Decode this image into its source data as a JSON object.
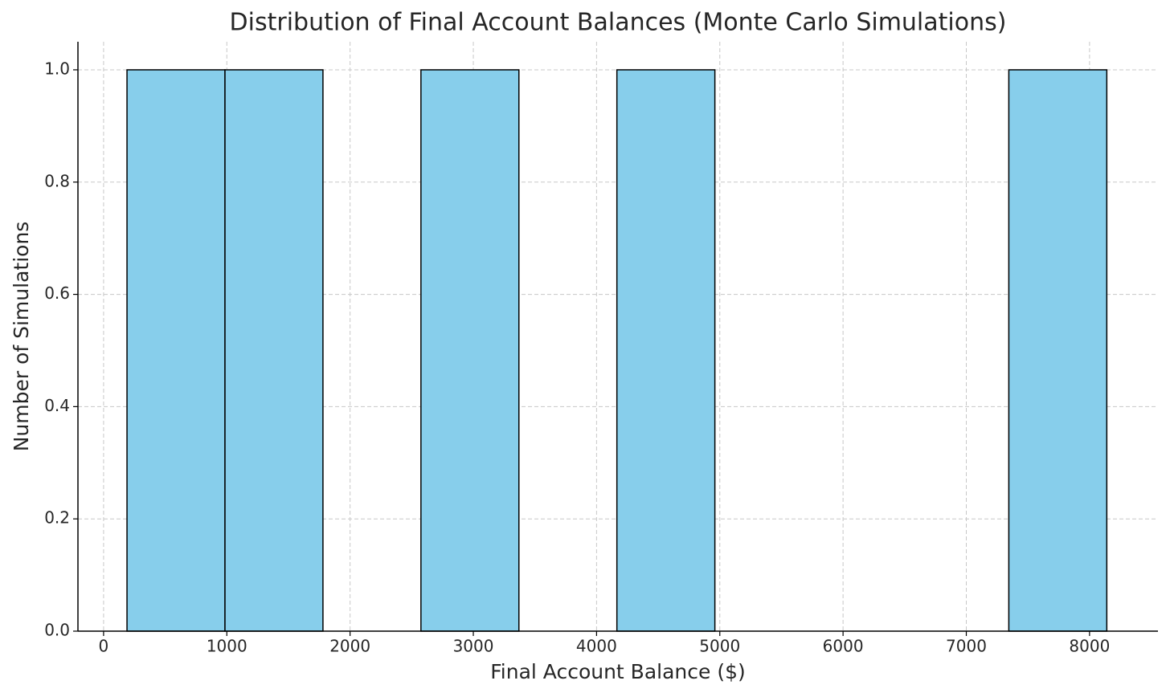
{
  "chart_data": {
    "type": "histogram",
    "title": "Distribution of Final Account Balances (Monte Carlo Simulations)",
    "x_label": "Final Account Balance ($)",
    "y_label": "Number of Simulations",
    "bins": [
      190,
      985,
      1780,
      2575,
      3370,
      4165,
      4960,
      5755,
      6550,
      7345,
      8140
    ],
    "counts": [
      1,
      1,
      0,
      1,
      0,
      1,
      0,
      0,
      0,
      1
    ],
    "color": "#87ceeb",
    "edge_color": "#000000",
    "xlim": [
      -208,
      8555
    ],
    "xticks": [
      0,
      1000,
      2000,
      3000,
      4000,
      5000,
      6000,
      7000,
      8000
    ],
    "ylim": [
      0,
      1.05
    ],
    "yticks": [
      {
        "value": 0,
        "label": "0.0"
      },
      0.2,
      0.4,
      0.6,
      0.8,
      {
        "value": 1,
        "label": "1.0"
      }
    ],
    "grid": true
  }
}
